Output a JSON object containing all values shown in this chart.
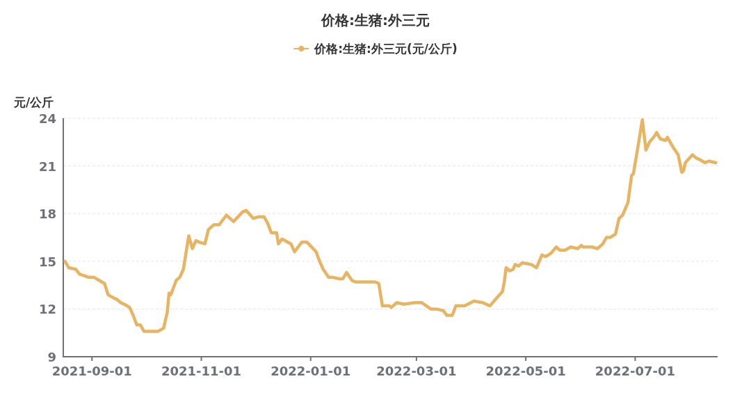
{
  "chart_data": {
    "type": "line",
    "title": "价格:生猪:外三元",
    "ylabel": "元/公斤",
    "legend": "top",
    "grid": "y",
    "xlim": [
      "2021-08-16",
      "2022-08-16"
    ],
    "xticks": [
      "2021-09-01",
      "2021-11-01",
      "2022-01-01",
      "2022-03-01",
      "2022-05-01",
      "2022-07-01"
    ],
    "ylim": [
      9,
      24
    ],
    "yticks": [
      9,
      12,
      15,
      18,
      21,
      24
    ],
    "x": [
      "2021-08-17",
      "2021-08-19",
      "2021-08-23",
      "2021-08-25",
      "2021-08-30",
      "2021-09-02",
      "2021-09-05",
      "2021-09-08",
      "2021-09-10",
      "2021-09-13",
      "2021-09-15",
      "2021-09-17",
      "2021-09-19",
      "2021-09-22",
      "2021-09-24",
      "2021-09-26",
      "2021-09-28",
      "2021-09-30",
      "2021-10-08",
      "2021-10-11",
      "2021-10-13",
      "2021-10-14",
      "2021-10-15",
      "2021-10-18",
      "2021-10-20",
      "2021-10-22",
      "2021-10-25",
      "2021-10-27",
      "2021-10-29",
      "2021-10-31",
      "2021-11-03",
      "2021-11-05",
      "2021-11-08",
      "2021-11-11",
      "2021-11-15",
      "2021-11-19",
      "2021-11-24",
      "2021-11-26",
      "2021-11-30",
      "2021-12-03",
      "2021-12-06",
      "2021-12-08",
      "2021-12-10",
      "2021-12-13",
      "2021-12-14",
      "2021-12-16",
      "2021-12-21",
      "2021-12-23",
      "2021-12-27",
      "2021-12-30",
      "2022-01-04",
      "2022-01-06",
      "2022-01-08",
      "2022-01-11",
      "2022-01-13",
      "2022-01-17",
      "2022-01-19",
      "2022-01-21",
      "2022-01-24",
      "2022-01-26",
      "2022-02-06",
      "2022-02-08",
      "2022-02-10",
      "2022-02-14",
      "2022-02-15",
      "2022-02-18",
      "2022-02-22",
      "2022-02-28",
      "2022-03-04",
      "2022-03-09",
      "2022-03-12",
      "2022-03-16",
      "2022-03-18",
      "2022-03-21",
      "2022-03-23",
      "2022-03-28",
      "2022-04-02",
      "2022-04-07",
      "2022-04-11",
      "2022-04-14",
      "2022-04-18",
      "2022-04-19",
      "2022-04-20",
      "2022-04-22",
      "2022-04-24",
      "2022-04-25",
      "2022-04-27",
      "2022-04-29",
      "2022-05-04",
      "2022-05-07",
      "2022-05-10",
      "2022-05-12",
      "2022-05-15",
      "2022-05-18",
      "2022-05-20",
      "2022-05-23",
      "2022-05-26",
      "2022-05-30",
      "2022-06-01",
      "2022-06-02",
      "2022-06-07",
      "2022-06-10",
      "2022-06-13",
      "2022-06-15",
      "2022-06-17",
      "2022-06-20",
      "2022-06-22",
      "2022-06-24",
      "2022-06-27",
      "2022-06-29",
      "2022-06-30",
      "2022-07-03",
      "2022-07-05",
      "2022-07-07",
      "2022-07-09",
      "2022-07-12",
      "2022-07-13",
      "2022-07-15",
      "2022-07-18",
      "2022-07-19",
      "2022-07-22",
      "2022-07-25",
      "2022-07-27",
      "2022-07-28",
      "2022-07-29",
      "2022-08-02",
      "2022-08-04",
      "2022-08-06",
      "2022-08-09",
      "2022-08-11",
      "2022-08-15"
    ],
    "series": [
      {
        "name": "价格:生猪:外三元(元/公斤)",
        "color": "#e8b462",
        "values": [
          15.0,
          14.6,
          14.5,
          14.2,
          14.0,
          14.0,
          13.8,
          13.6,
          12.9,
          12.7,
          12.6,
          12.4,
          12.3,
          12.1,
          11.6,
          11.0,
          11.0,
          10.6,
          10.6,
          10.8,
          11.8,
          13.0,
          12.9,
          13.8,
          14.0,
          14.5,
          16.6,
          15.8,
          16.3,
          16.2,
          16.1,
          17.0,
          17.3,
          17.3,
          17.9,
          17.5,
          18.1,
          18.2,
          17.7,
          17.8,
          17.8,
          17.4,
          16.8,
          16.8,
          16.1,
          16.4,
          16.1,
          15.6,
          16.2,
          16.2,
          15.6,
          15.0,
          14.5,
          14.0,
          14.0,
          13.9,
          13.9,
          14.3,
          13.8,
          13.7,
          13.7,
          13.6,
          12.2,
          12.2,
          12.1,
          12.4,
          12.3,
          12.4,
          12.4,
          12.0,
          12.0,
          11.9,
          11.6,
          11.6,
          12.2,
          12.2,
          12.5,
          12.4,
          12.2,
          12.6,
          13.1,
          13.7,
          14.6,
          14.4,
          14.5,
          14.8,
          14.7,
          14.9,
          14.8,
          14.6,
          15.4,
          15.3,
          15.5,
          15.9,
          15.7,
          15.7,
          15.9,
          15.8,
          16.0,
          15.9,
          15.9,
          15.8,
          16.1,
          16.5,
          16.5,
          16.7,
          17.7,
          17.9,
          18.7,
          20.4,
          20.5,
          22.5,
          23.9,
          22.0,
          22.5,
          22.9,
          23.1,
          22.7,
          22.6,
          22.8,
          22.2,
          21.7,
          20.6,
          20.7,
          21.2,
          21.7,
          21.5,
          21.4,
          21.2,
          21.3,
          21.2
        ]
      }
    ]
  }
}
